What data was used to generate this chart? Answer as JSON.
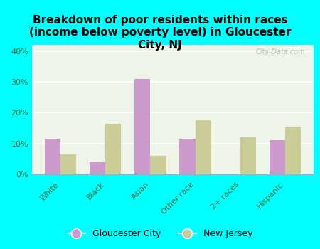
{
  "title": "Breakdown of poor residents within races\n(income below poverty level) in Gloucester\nCity, NJ",
  "categories": [
    "White",
    "Black",
    "Asian",
    "Other race",
    "2+ races",
    "Hispanic"
  ],
  "gloucester_city": [
    11.5,
    4.0,
    31.0,
    11.5,
    0.0,
    11.0
  ],
  "new_jersey": [
    6.5,
    16.5,
    6.0,
    17.5,
    12.0,
    15.5
  ],
  "gloucester_color": "#cc99cc",
  "nj_color": "#cccc99",
  "background_outer": "#00ffff",
  "background_inner": "#eef5e8",
  "ylim": [
    0,
    42
  ],
  "yticks": [
    0,
    10,
    20,
    30,
    40
  ],
  "bar_width": 0.35,
  "legend_labels": [
    "Gloucester City",
    "New Jersey"
  ],
  "watermark": "City-Data.com",
  "title_fontsize": 11,
  "tick_color": "#336633",
  "axis_label_color": "#336633"
}
